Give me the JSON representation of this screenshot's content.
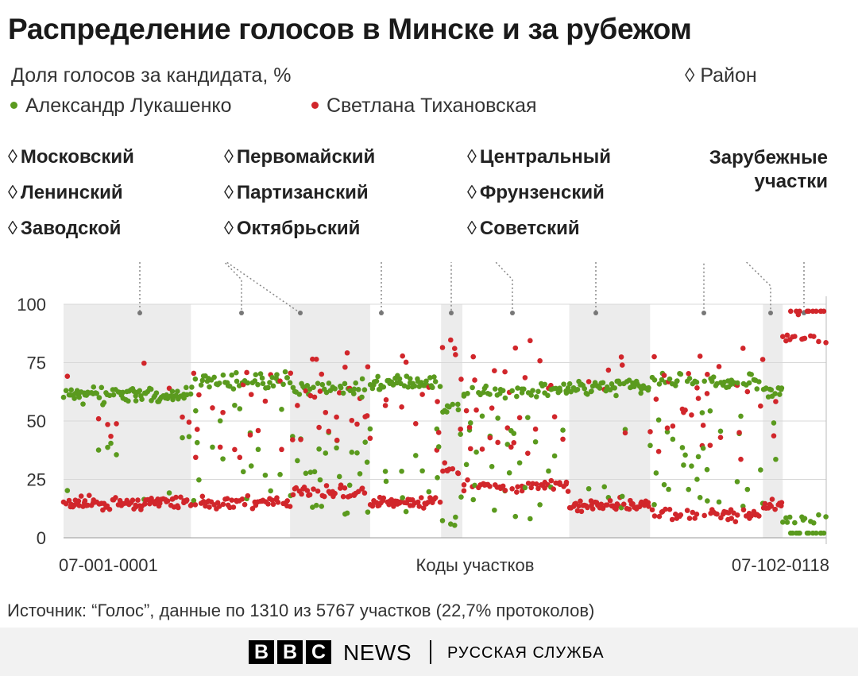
{
  "title": "Распределение голосов в Минске и за рубежом",
  "subtitle": "Доля голосов за кандидата, %",
  "district_legend": "Район",
  "source": "Источник: “Голос”, данные по 1310 из 5767 участков (22,7% протоколов)",
  "footer": {
    "bbc_letters": [
      "B",
      "B",
      "C"
    ],
    "news": "NEWS",
    "service": "РУССКАЯ СЛУЖБА"
  },
  "colors": {
    "lukashenko": "#5a9a1e",
    "tikhanovskaya": "#d1262b",
    "band": "#ececec"
  },
  "chart_data": {
    "type": "scatter",
    "title": "Распределение голосов в Минске и за рубежом",
    "ylabel": "Доля голосов за кандидата, %",
    "xlabel": "Коды участков",
    "x_first_label": "07-001-0001",
    "x_last_label": "07-102-0118",
    "ylim": [
      0,
      100
    ],
    "yticks": [
      0,
      25,
      50,
      75,
      100
    ],
    "grid": true,
    "legend_position": "top-left",
    "series": [
      {
        "name": "Александр Лукашенко",
        "key": "lukashenko",
        "color": "#5a9a1e"
      },
      {
        "name": "Светлана Тихановская",
        "key": "tikhanovskaya",
        "color": "#d1262b"
      }
    ],
    "districts": [
      {
        "name": "Московский",
        "shaded": true,
        "span": [
          0.0,
          0.167
        ]
      },
      {
        "name": "Ленинский",
        "shaded": false,
        "span": [
          0.167,
          0.297
        ]
      },
      {
        "name": "Заводской",
        "shaded": true,
        "span": [
          0.297,
          0.402
        ]
      },
      {
        "name": "Первомайский",
        "shaded": false,
        "span": [
          0.402,
          0.495
        ]
      },
      {
        "name": "Партизанский",
        "shaded": true,
        "span": [
          0.495,
          0.523
        ]
      },
      {
        "name": "Октябрьский",
        "shaded": false,
        "span": [
          0.523,
          0.663
        ]
      },
      {
        "name": "Центральный",
        "shaded": true,
        "span": [
          0.663,
          0.769
        ]
      },
      {
        "name": "Фрунзенский",
        "shaded": false,
        "span": [
          0.769,
          0.917
        ]
      },
      {
        "name": "Советский",
        "shaded": true,
        "span": [
          0.917,
          0.943
        ]
      },
      {
        "name": "Зарубежные участки",
        "shaded": false,
        "span": [
          0.943,
          1.0
        ]
      }
    ]
  }
}
